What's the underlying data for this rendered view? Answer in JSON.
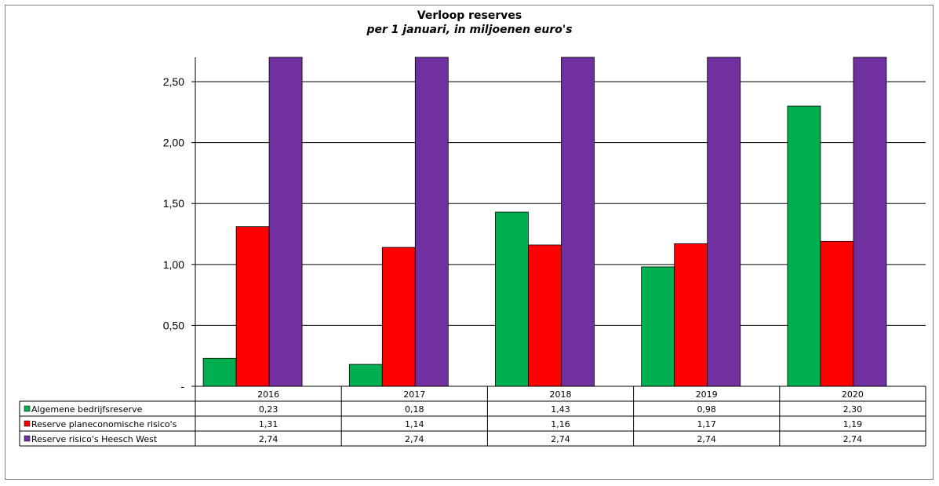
{
  "chart_data": {
    "type": "bar",
    "title": "Verloop reserves",
    "subtitle": "per 1 januari, in miljoenen euro's",
    "categories": [
      "2016",
      "2017",
      "2018",
      "2019",
      "2020"
    ],
    "series": [
      {
        "name": "Algemene bedrijfsreserve",
        "color": "#00b050",
        "values": [
          0.23,
          0.18,
          1.43,
          0.98,
          2.3
        ],
        "labels": [
          "0,23",
          "0,18",
          "1,43",
          "0,98",
          "2,30"
        ]
      },
      {
        "name": "Reserve planeconomische risico's",
        "color": "#ff0000",
        "values": [
          1.31,
          1.14,
          1.16,
          1.17,
          1.19
        ],
        "labels": [
          "1,31",
          "1,14",
          "1,16",
          "1,17",
          "1,19"
        ]
      },
      {
        "name": "Reserve risico's Heesch West",
        "color": "#7030a0",
        "values": [
          2.74,
          2.74,
          2.74,
          2.74,
          2.74
        ],
        "labels": [
          "2,74",
          "2,74",
          "2,74",
          "2,74",
          "2,74"
        ]
      }
    ],
    "ylim": [
      0,
      2.7
    ],
    "yticks": [
      0,
      0.5,
      1.0,
      1.5,
      2.0,
      2.5
    ],
    "ytick_labels": [
      "-",
      "0,50",
      "1,00",
      "1,50",
      "2,00",
      "2,50"
    ],
    "grid": true,
    "legend": "data-table-below"
  }
}
